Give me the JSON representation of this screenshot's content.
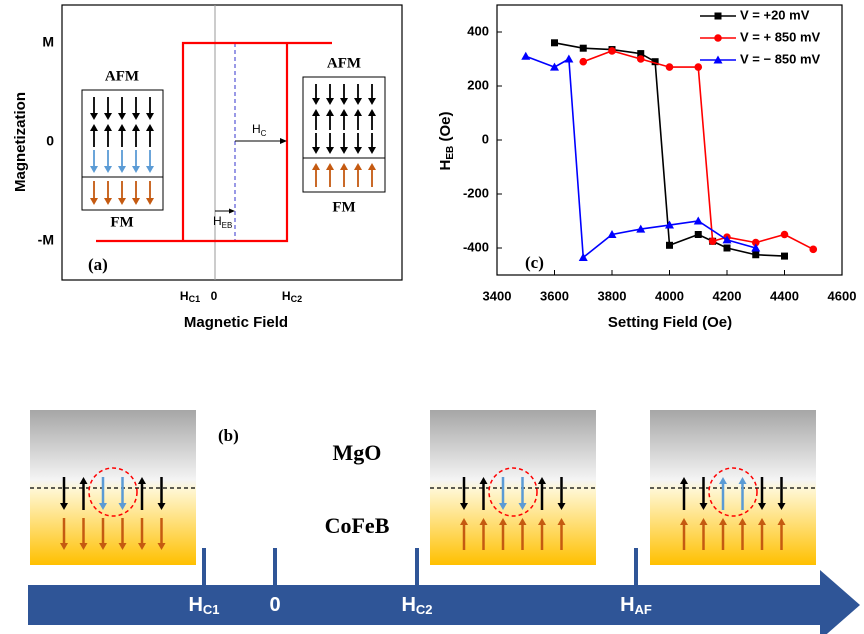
{
  "chart_data": {
    "type": "line",
    "panel_label": "(c)",
    "x_label": "Setting Field (Oe)",
    "y_label": {
      "main": "H",
      "sub": "EB",
      "unit": "(Oe)"
    },
    "xlim": [
      3400,
      4600
    ],
    "xticks": [
      3400,
      3600,
      3800,
      4000,
      4200,
      4400,
      4600
    ],
    "ylim": [
      -500,
      500
    ],
    "yticks": [
      400,
      200,
      0,
      -200,
      -400
    ],
    "legend": "upper right",
    "series": [
      {
        "name": "V =   +20 mV",
        "color": "#000000",
        "marker": "square",
        "x": [
          3600,
          3700,
          3800,
          3900,
          3950,
          4000,
          4100,
          4150,
          4200,
          4300,
          4400
        ],
        "values": [
          360,
          340,
          335,
          320,
          290,
          -390,
          -350,
          -375,
          -400,
          -425,
          -430
        ]
      },
      {
        "name": "V = + 850 mV",
        "color": "#ff0000",
        "marker": "circle",
        "x": [
          3700,
          3800,
          3900,
          4000,
          4100,
          4150,
          4200,
          4300,
          4400,
          4500
        ],
        "values": [
          290,
          330,
          300,
          270,
          270,
          -375,
          -360,
          -380,
          -350,
          -405
        ]
      },
      {
        "name": "V = − 850 mV",
        "color": "#0000ff",
        "marker": "triangle",
        "x": [
          3500,
          3600,
          3650,
          3700,
          3800,
          3900,
          4000,
          4100,
          4200,
          4300
        ],
        "values": [
          310,
          270,
          300,
          -435,
          -350,
          -330,
          -315,
          -300,
          -370,
          -400
        ]
      }
    ]
  },
  "panel_a": {
    "panel_label": "(a)",
    "y_title": "Magnetization",
    "x_title": "Magnetic Field",
    "y_labels": [
      "M",
      "0",
      "-M"
    ],
    "x_labels": [
      {
        "main": "H",
        "sub": "C1"
      },
      {
        "main": "0"
      },
      {
        "main": "H",
        "sub": "C2"
      }
    ],
    "hc": {
      "main": "H",
      "sub": "C"
    },
    "heb": {
      "main": "H",
      "sub": "EB"
    },
    "left_stack": {
      "top": "AFM",
      "bottom": "FM"
    },
    "right_stack": {
      "top": "AFM",
      "bottom": "FM"
    }
  },
  "panel_b": {
    "panel_label": "(b)",
    "layer_top": "MgO",
    "layer_bottom": "CoFeB",
    "axis_labels": [
      {
        "main": "H",
        "sub": "C1"
      },
      {
        "main": "0"
      },
      {
        "main": "H",
        "sub": "C2"
      },
      {
        "main": "H",
        "sub": "AF"
      }
    ]
  }
}
